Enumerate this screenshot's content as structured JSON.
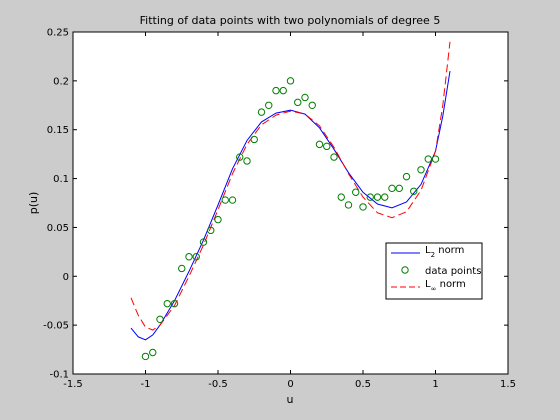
{
  "chart_data": {
    "type": "line",
    "title": "Fitting of data points with two polynomials of degree 5",
    "xlabel": "u",
    "ylabel": "p(u)",
    "xlim": [
      -1.5,
      1.5
    ],
    "ylim": [
      -0.1,
      0.25
    ],
    "xticks": [
      -1.5,
      -1,
      -0.5,
      0,
      0.5,
      1,
      1.5
    ],
    "xtick_labels": [
      "-1.5",
      "-1",
      "-0.5",
      "0",
      "0.5",
      "1",
      "1.5"
    ],
    "yticks": [
      -0.1,
      -0.05,
      0,
      0.05,
      0.1,
      0.15,
      0.2,
      0.25
    ],
    "ytick_labels": [
      "-0.1",
      "-0.05",
      "0",
      "0.05",
      "0.1",
      "0.15",
      "0.2",
      "0.25"
    ],
    "grid": false,
    "legend_position": "lower-right",
    "legend": {
      "l2_base": "L",
      "l2_sub": "2",
      "l2_suffix": " norm",
      "points": "data points",
      "linf_base": "L",
      "linf_sub": "∞",
      "linf_suffix": " norm"
    },
    "colors": {
      "l2": "#0000ff",
      "linf": "#ff0000",
      "points": "#008000",
      "axes_bg": "#ffffff",
      "figure_bg": "#cccccc"
    },
    "series": [
      {
        "key": "l2",
        "style": "solid",
        "x": [
          -1.1,
          -1.05,
          -1.0,
          -0.95,
          -0.9,
          -0.8,
          -0.7,
          -0.6,
          -0.5,
          -0.4,
          -0.3,
          -0.2,
          -0.1,
          0.0,
          0.1,
          0.2,
          0.3,
          0.4,
          0.5,
          0.6,
          0.7,
          0.8,
          0.9,
          1.0,
          1.05,
          1.1
        ],
        "y": [
          -0.053,
          -0.062,
          -0.065,
          -0.06,
          -0.05,
          -0.025,
          0.005,
          0.037,
          0.073,
          0.11,
          0.139,
          0.158,
          0.167,
          0.17,
          0.166,
          0.152,
          0.13,
          0.106,
          0.086,
          0.074,
          0.07,
          0.076,
          0.094,
          0.128,
          0.164,
          0.21
        ]
      },
      {
        "key": "linf",
        "style": "dashed",
        "x": [
          -1.1,
          -1.05,
          -1.0,
          -0.95,
          -0.9,
          -0.8,
          -0.7,
          -0.6,
          -0.5,
          -0.4,
          -0.3,
          -0.2,
          -0.1,
          0.0,
          0.1,
          0.2,
          0.3,
          0.4,
          0.5,
          0.6,
          0.7,
          0.8,
          0.9,
          1.0,
          1.05,
          1.1
        ],
        "y": [
          -0.022,
          -0.04,
          -0.052,
          -0.055,
          -0.05,
          -0.03,
          0.0,
          0.032,
          0.068,
          0.105,
          0.135,
          0.155,
          0.165,
          0.169,
          0.166,
          0.154,
          0.132,
          0.105,
          0.081,
          0.065,
          0.06,
          0.066,
          0.088,
          0.128,
          0.175,
          0.24
        ]
      }
    ],
    "points": {
      "x": [
        -1.0,
        -0.95,
        -0.9,
        -0.85,
        -0.8,
        -0.75,
        -0.7,
        -0.65,
        -0.6,
        -0.55,
        -0.5,
        -0.45,
        -0.4,
        -0.35,
        -0.3,
        -0.25,
        -0.2,
        -0.15,
        -0.1,
        -0.05,
        0.0,
        0.05,
        0.1,
        0.15,
        0.2,
        0.25,
        0.3,
        0.35,
        0.4,
        0.45,
        0.5,
        0.55,
        0.6,
        0.65,
        0.7,
        0.75,
        0.8,
        0.85,
        0.9,
        0.95,
        1.0
      ],
      "y": [
        -0.082,
        -0.078,
        -0.044,
        -0.028,
        -0.028,
        0.008,
        0.02,
        0.02,
        0.035,
        0.047,
        0.058,
        0.078,
        0.078,
        0.122,
        0.118,
        0.14,
        0.168,
        0.175,
        0.19,
        0.19,
        0.2,
        0.178,
        0.183,
        0.175,
        0.135,
        0.133,
        0.122,
        0.081,
        0.073,
        0.086,
        0.071,
        0.081,
        0.081,
        0.081,
        0.09,
        0.09,
        0.102,
        0.087,
        0.109,
        0.12,
        0.12
      ]
    }
  }
}
